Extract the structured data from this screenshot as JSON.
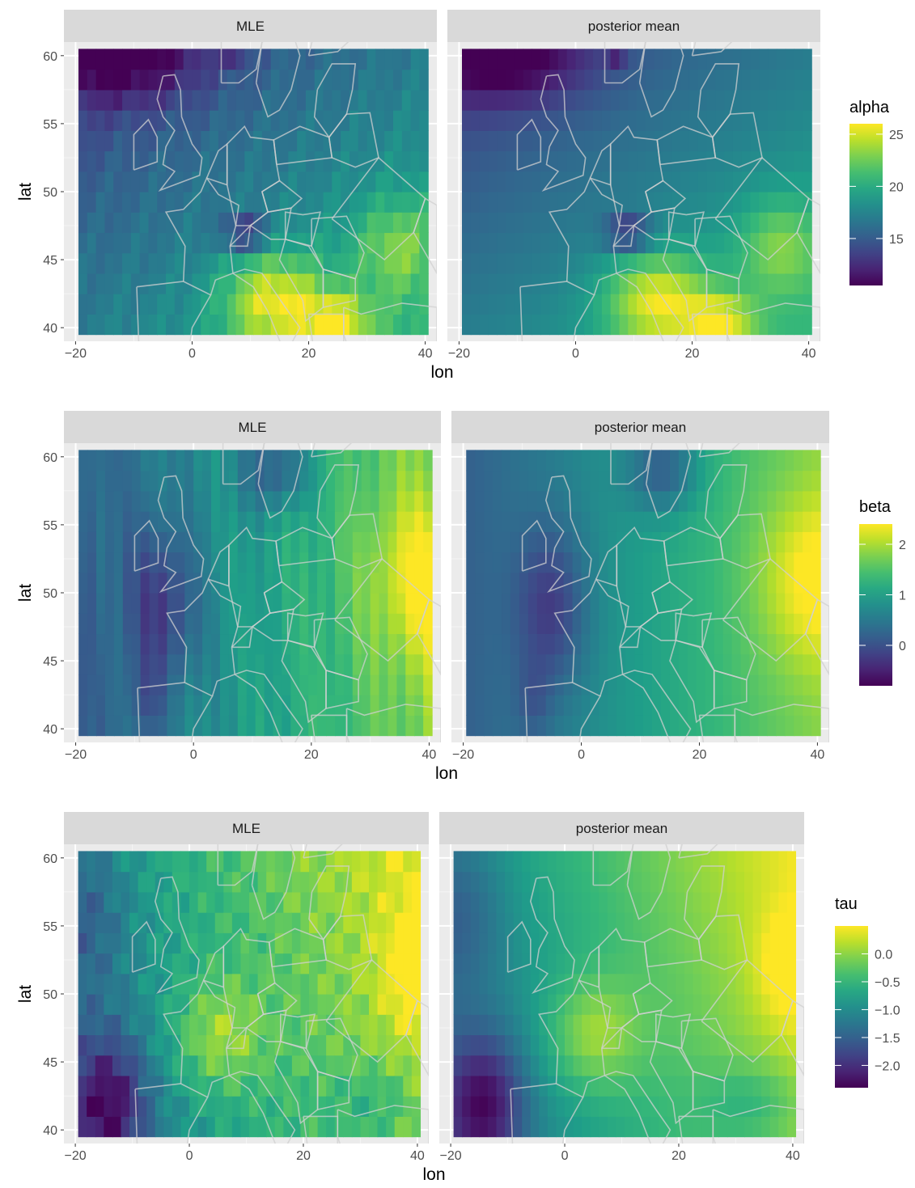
{
  "chart_data": [
    {
      "type": "heatmap",
      "panels": [
        {
          "title": "MLE"
        },
        {
          "title": "posterior mean"
        }
      ],
      "xlabel": "lon",
      "ylabel": "lat",
      "xlim": [
        -22,
        42
      ],
      "ylim": [
        39,
        61
      ],
      "x_ticks": [
        -20,
        0,
        20,
        40
      ],
      "y_ticks": [
        40,
        45,
        50,
        55,
        60
      ],
      "grid": true,
      "legend": {
        "title": "alpha",
        "placement": "right",
        "ticks": [
          15,
          20,
          25
        ],
        "range": [
          10.5,
          26
        ]
      },
      "colors": [
        "#440154",
        "#3b528b",
        "#21918c",
        "#5ec962",
        "#fde725"
      ]
    },
    {
      "type": "heatmap",
      "panels": [
        {
          "title": "MLE"
        },
        {
          "title": "posterior mean"
        }
      ],
      "xlabel": "lon",
      "ylabel": "lat",
      "xlim": [
        -22,
        42
      ],
      "ylim": [
        39,
        61
      ],
      "x_ticks": [
        -20,
        0,
        20,
        40
      ],
      "y_ticks": [
        40,
        45,
        50,
        55,
        60
      ],
      "grid": true,
      "legend": {
        "title": "beta",
        "placement": "right",
        "ticks": [
          0,
          1,
          2
        ],
        "range": [
          -0.8,
          2.4
        ]
      },
      "colors": [
        "#440154",
        "#3b528b",
        "#21918c",
        "#5ec962",
        "#fde725"
      ]
    },
    {
      "type": "heatmap",
      "panels": [
        {
          "title": "MLE"
        },
        {
          "title": "posterior mean"
        }
      ],
      "xlabel": "lon",
      "ylabel": "lat",
      "xlim": [
        -22,
        42
      ],
      "ylim": [
        39,
        61
      ],
      "x_ticks": [
        -20,
        0,
        20,
        40
      ],
      "y_ticks": [
        40,
        45,
        50,
        55,
        60
      ],
      "grid": true,
      "legend": {
        "title": "tau",
        "placement": "right",
        "ticks": [
          0.0,
          -0.5,
          -1.0,
          -1.5,
          -2.0
        ],
        "tick_labels": [
          "0.0",
          "−0.5",
          "−1.0",
          "−1.5",
          "−2.0"
        ],
        "range": [
          -2.4,
          0.5
        ]
      },
      "colors": [
        "#440154",
        "#3b528b",
        "#21918c",
        "#5ec962",
        "#fde725"
      ]
    }
  ]
}
